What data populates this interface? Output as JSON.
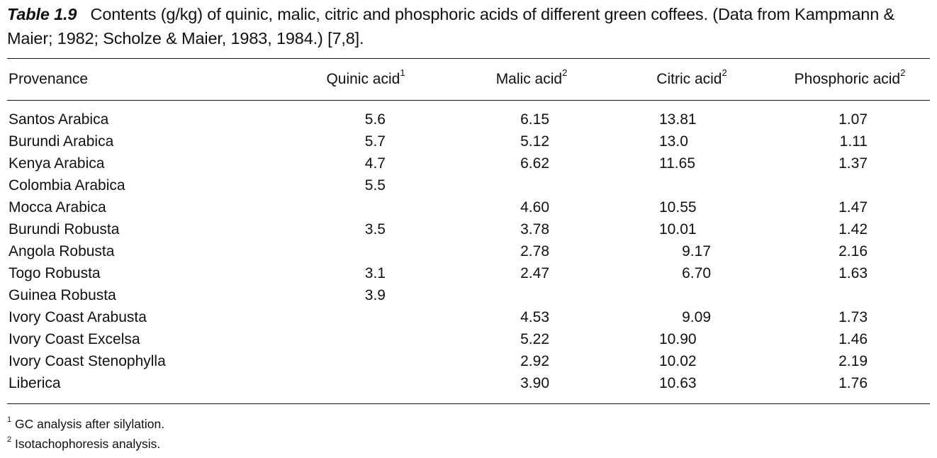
{
  "caption": {
    "label": "Table 1.9",
    "text": "Contents (g/kg) of quinic, malic, citric and phosphoric acids of different green coffees. (Data from Kampmann & Maier; 1982; Scholze & Maier, 1983, 1984.) [7,8]."
  },
  "columns": [
    {
      "label": "Provenance",
      "sup": ""
    },
    {
      "label": "Quinic acid",
      "sup": "1"
    },
    {
      "label": "Malic acid",
      "sup": "2"
    },
    {
      "label": "Citric acid",
      "sup": "2"
    },
    {
      "label": "Phosphoric acid",
      "sup": "2"
    }
  ],
  "rows": [
    {
      "provenance": "Santos Arabica",
      "quinic": "5.6",
      "malic": "6.15",
      "citric": "13.81",
      "phosphoric": "1.07"
    },
    {
      "provenance": "Burundi Arabica",
      "quinic": "5.7",
      "malic": "5.12",
      "citric": "13.0",
      "phosphoric": "1.11"
    },
    {
      "provenance": "Kenya Arabica",
      "quinic": "4.7",
      "malic": "6.62",
      "citric": "11.65",
      "phosphoric": "1.37"
    },
    {
      "provenance": "Colombia Arabica",
      "quinic": "5.5",
      "malic": "",
      "citric": "",
      "phosphoric": ""
    },
    {
      "provenance": "Mocca Arabica",
      "quinic": "",
      "malic": "4.60",
      "citric": "10.55",
      "phosphoric": "1.47"
    },
    {
      "provenance": "Burundi Robusta",
      "quinic": "3.5",
      "malic": "3.78",
      "citric": "10.01",
      "phosphoric": "1.42"
    },
    {
      "provenance": "Angola Robusta",
      "quinic": "",
      "malic": "2.78",
      "citric": "9.17",
      "phosphoric": "2.16"
    },
    {
      "provenance": "Togo Robusta",
      "quinic": "3.1",
      "malic": "2.47",
      "citric": "6.70",
      "phosphoric": "1.63"
    },
    {
      "provenance": "Guinea Robusta",
      "quinic": "3.9",
      "malic": "",
      "citric": "",
      "phosphoric": ""
    },
    {
      "provenance": "Ivory Coast Arabusta",
      "quinic": "",
      "malic": "4.53",
      "citric": "9.09",
      "phosphoric": "1.73"
    },
    {
      "provenance": "Ivory Coast Excelsa",
      "quinic": "",
      "malic": "5.22",
      "citric": "10.90",
      "phosphoric": "1.46"
    },
    {
      "provenance": "Ivory Coast Stenophylla",
      "quinic": "",
      "malic": "2.92",
      "citric": "10.02",
      "phosphoric": "2.19"
    },
    {
      "provenance": "Liberica",
      "quinic": "",
      "malic": "3.90",
      "citric": "10.63",
      "phosphoric": "1.76"
    }
  ],
  "footnotes": [
    {
      "marker": "1",
      "text": "GC analysis after silylation."
    },
    {
      "marker": "2",
      "text": "Isotachophoresis analysis."
    }
  ]
}
